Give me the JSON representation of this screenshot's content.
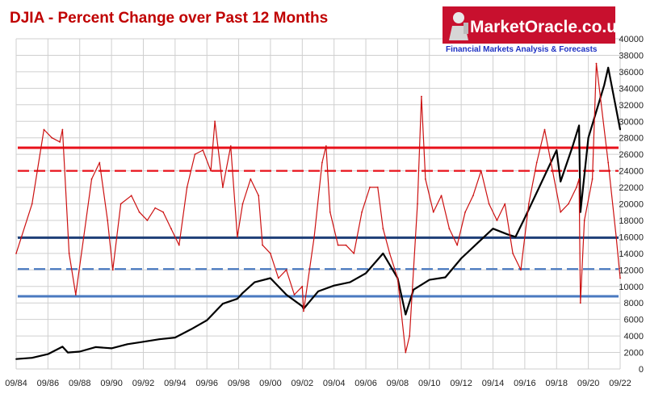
{
  "brand": {
    "name": "MarketOracle.co.uk",
    "tagline": "Financial Markets Analysis & Forecasts",
    "band_color": "#c8102e"
  },
  "colors": {
    "price_line": "#000000",
    "pct_line": "#cc1111",
    "red_levels": "#e8101a",
    "blue_dark": "#1f3f78",
    "blue_light": "#4a7ac0",
    "grid": "#cfcfcf"
  },
  "chart_data": {
    "type": "line",
    "title": "DJIA - Percent Change over Past 12 Months",
    "xlabel": "",
    "ylabel": "",
    "x_ticks": [
      "09/84",
      "09/86",
      "09/88",
      "09/90",
      "09/92",
      "09/94",
      "09/96",
      "09/98",
      "09/00",
      "09/02",
      "09/04",
      "09/06",
      "09/08",
      "09/10",
      "09/12",
      "09/14",
      "09/16",
      "09/18",
      "09/20",
      "09/22"
    ],
    "x_range": [
      "1984-09",
      "2022-09"
    ],
    "y_axis_side": "right",
    "ylim": [
      0,
      40000
    ],
    "y_ticks": [
      0,
      2000,
      4000,
      6000,
      8000,
      10000,
      12000,
      14000,
      16000,
      18000,
      20000,
      22000,
      24000,
      26000,
      28000,
      30000,
      32000,
      34000,
      36000,
      38000,
      40000
    ],
    "grid": true,
    "legend": "none",
    "series": [
      {
        "color": "#000000",
        "axis": "right",
        "x": [
          "1984-09",
          "1985-09",
          "1986-09",
          "1987-08",
          "1987-12",
          "1988-09",
          "1989-09",
          "1990-09",
          "1991-09",
          "1992-09",
          "1993-09",
          "1994-09",
          "1995-09",
          "1996-09",
          "1997-09",
          "1998-08",
          "1998-12",
          "1999-09",
          "2000-09",
          "2001-09",
          "2002-09",
          "2002-10",
          "2003-09",
          "2004-09",
          "2005-09",
          "2006-09",
          "2007-10",
          "2008-09",
          "2009-03",
          "2009-09",
          "2010-09",
          "2011-09",
          "2012-09",
          "2013-09",
          "2014-09",
          "2015-08",
          "2016-02",
          "2016-09",
          "2017-09",
          "2018-09",
          "2018-12",
          "2019-09",
          "2020-02",
          "2020-03",
          "2020-09",
          "2021-09",
          "2021-12",
          "2022-09"
        ],
        "values": [
          1200,
          1350,
          1800,
          2700,
          2000,
          2100,
          2650,
          2500,
          3000,
          3300,
          3600,
          3800,
          4800,
          5900,
          7900,
          8500,
          9200,
          10500,
          11000,
          9000,
          7600,
          7300,
          9400,
          10100,
          10500,
          11600,
          14000,
          11000,
          6600,
          9600,
          10800,
          11100,
          13400,
          15200,
          17000,
          16300,
          16000,
          18300,
          22400,
          26500,
          22700,
          26900,
          29500,
          19000,
          28000,
          34400,
          36500,
          29000
        ]
      },
      {
        "color": "#cc1111",
        "axis": "right",
        "x": [
          "1984-09",
          "1985-01",
          "1985-09",
          "1986-01",
          "1986-06",
          "1986-12",
          "1987-06",
          "1987-08",
          "1988-01",
          "1988-06",
          "1988-12",
          "1989-06",
          "1989-12",
          "1990-06",
          "1990-10",
          "1991-04",
          "1991-12",
          "1992-06",
          "1992-12",
          "1993-06",
          "1993-12",
          "1994-06",
          "1994-12",
          "1995-06",
          "1995-12",
          "1996-06",
          "1996-12",
          "1997-03",
          "1997-09",
          "1998-03",
          "1998-08",
          "1998-12",
          "1999-06",
          "1999-12",
          "2000-03",
          "2000-09",
          "2001-03",
          "2001-09",
          "2002-03",
          "2002-09",
          "2002-10",
          "2003-06",
          "2003-12",
          "2004-03",
          "2004-06",
          "2004-12",
          "2005-06",
          "2005-12",
          "2006-06",
          "2006-12",
          "2007-06",
          "2007-10",
          "2008-03",
          "2008-09",
          "2009-03",
          "2009-06",
          "2009-12",
          "2010-03",
          "2010-06",
          "2010-12",
          "2011-06",
          "2011-12",
          "2012-06",
          "2012-12",
          "2013-06",
          "2013-12",
          "2014-06",
          "2014-12",
          "2015-06",
          "2015-12",
          "2016-06",
          "2016-12",
          "2017-06",
          "2017-12",
          "2018-06",
          "2018-12",
          "2019-06",
          "2019-12",
          "2020-02",
          "2020-03",
          "2020-06",
          "2020-12",
          "2021-03",
          "2021-06",
          "2021-12",
          "2022-06",
          "2022-09"
        ],
        "values": [
          14000,
          16000,
          20000,
          24000,
          29000,
          28000,
          27500,
          29000,
          14000,
          9000,
          16000,
          23000,
          25000,
          18000,
          12000,
          20000,
          21000,
          19000,
          18000,
          19500,
          19000,
          17000,
          15000,
          22000,
          26000,
          26500,
          24000,
          30000,
          22000,
          27000,
          16000,
          20000,
          23000,
          21000,
          15000,
          14000,
          11000,
          12000,
          9000,
          10000,
          7000,
          16000,
          25000,
          27000,
          19000,
          15000,
          15000,
          14000,
          19000,
          22000,
          22000,
          17000,
          14000,
          11000,
          2000,
          4000,
          20000,
          33000,
          23000,
          19000,
          21000,
          17000,
          15000,
          19000,
          21000,
          24000,
          20000,
          18000,
          20000,
          14000,
          12000,
          20000,
          25000,
          29000,
          24000,
          19000,
          20000,
          22000,
          23000,
          8000,
          18000,
          23000,
          37000,
          33000,
          25000,
          16000,
          11000
        ]
      }
    ],
    "reference_lines": [
      {
        "value": 26800,
        "color": "#e8101a",
        "style": "solid"
      },
      {
        "value": 24000,
        "color": "#e8101a",
        "style": "dashed"
      },
      {
        "value": 15900,
        "color": "#1f3f78",
        "style": "solid"
      },
      {
        "value": 12100,
        "color": "#4a7ac0",
        "style": "dashed"
      },
      {
        "value": 8800,
        "color": "#4a7ac0",
        "style": "solid"
      }
    ]
  }
}
